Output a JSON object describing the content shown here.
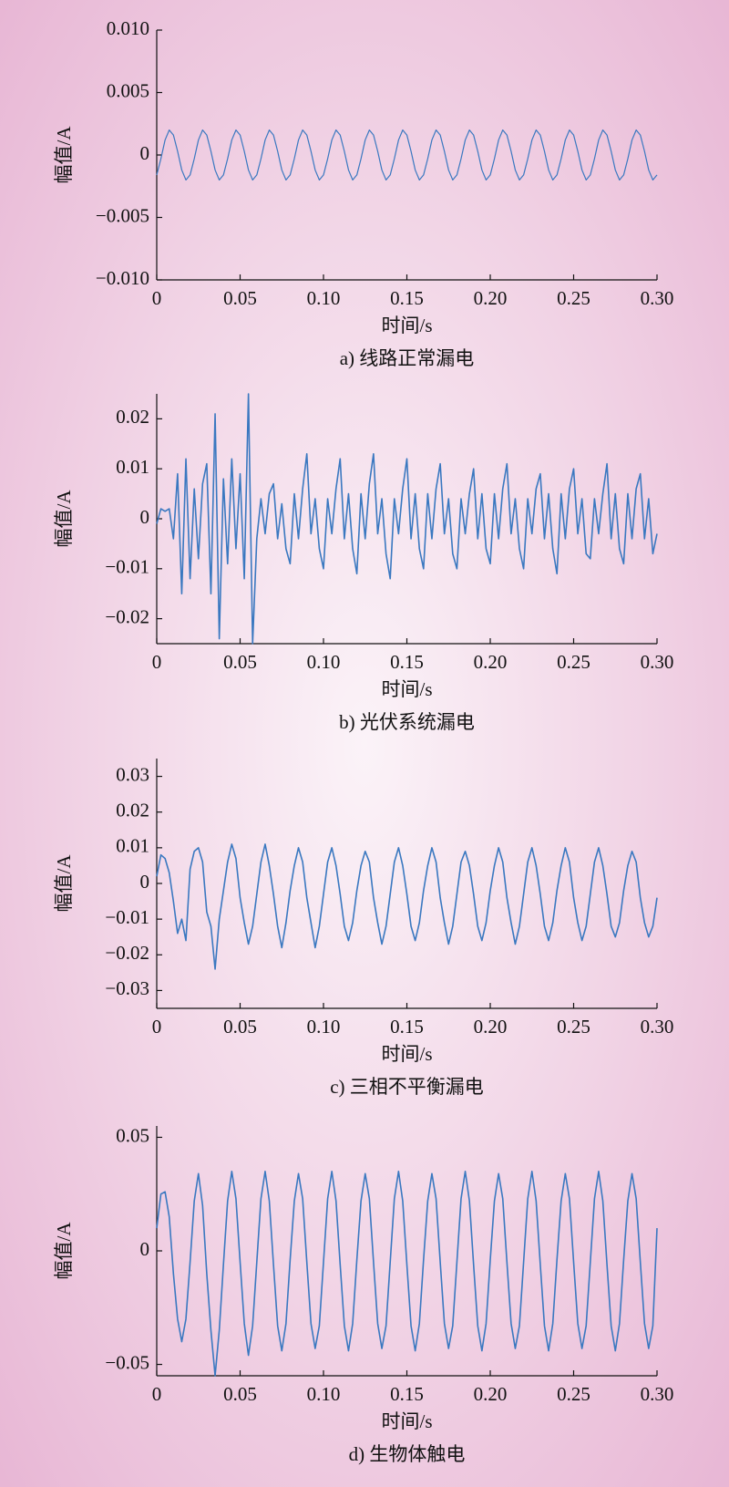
{
  "chart_data": [
    {
      "type": "line",
      "color": "#3a78c0",
      "ylabel": "幅值/A",
      "xlabel": "时间/s",
      "caption": "a) 线路正常漏电",
      "xlim": [
        0,
        0.3
      ],
      "xticks": [
        0,
        0.05,
        {
          "value": 0.1,
          "label": "0.10"
        },
        0.15,
        {
          "value": 0.2,
          "label": "0.20"
        },
        0.25,
        {
          "value": 0.3,
          "label": "0.30"
        }
      ],
      "ylim": [
        -0.01,
        0.01
      ],
      "yticks": [
        {
          "value": -0.01,
          "label": "−0.010"
        },
        {
          "value": -0.005,
          "label": "−0.005"
        },
        0,
        {
          "value": 0.005,
          "label": "0.005"
        },
        {
          "value": 0.01,
          "label": "0.010"
        }
      ],
      "x": [
        0,
        0.0025,
        0.005,
        0.0075,
        0.01,
        0.0125,
        0.015,
        0.0175,
        0.02,
        0.0225,
        0.025,
        0.0275,
        0.03,
        0.0325,
        0.035,
        0.0375,
        0.04,
        0.0425,
        0.045,
        0.0475,
        0.05,
        0.0525,
        0.055,
        0.0575,
        0.06,
        0.0625,
        0.065,
        0.0675,
        0.07,
        0.0725,
        0.075,
        0.0775,
        0.08,
        0.0825,
        0.085,
        0.0875,
        0.09,
        0.0925,
        0.095,
        0.0975,
        0.1,
        0.1025,
        0.105,
        0.1075,
        0.11,
        0.1125,
        0.115,
        0.1175,
        0.12,
        0.1225,
        0.125,
        0.1275,
        0.13,
        0.1325,
        0.135,
        0.1375,
        0.14,
        0.1425,
        0.145,
        0.1475,
        0.15,
        0.1525,
        0.155,
        0.1575,
        0.16,
        0.1625,
        0.165,
        0.1675,
        0.17,
        0.1725,
        0.175,
        0.1775,
        0.18,
        0.1825,
        0.185,
        0.1875,
        0.19,
        0.1925,
        0.195,
        0.1975,
        0.2,
        0.2025,
        0.205,
        0.2075,
        0.21,
        0.2125,
        0.215,
        0.2175,
        0.22,
        0.2225,
        0.225,
        0.2275,
        0.23,
        0.2325,
        0.235,
        0.2375,
        0.24,
        0.2425,
        0.245,
        0.2475,
        0.25,
        0.2525,
        0.255,
        0.2575,
        0.26,
        0.2625,
        0.265,
        0.2675,
        0.27,
        0.2725,
        0.275,
        0.2775,
        0.28,
        0.2825,
        0.285,
        0.2875,
        0.29,
        0.2925,
        0.295,
        0.2975,
        0.3
      ],
      "values": [
        -0.0016,
        -0.0003,
        0.0012,
        0.002,
        0.0016,
        0.0003,
        -0.0012,
        -0.002,
        -0.0016,
        -0.0003,
        0.0012,
        0.002,
        0.0016,
        0.0003,
        -0.0012,
        -0.002,
        -0.0016,
        -0.0003,
        0.0012,
        0.002,
        0.0016,
        0.0003,
        -0.0012,
        -0.002,
        -0.0016,
        -0.0003,
        0.0012,
        0.002,
        0.0016,
        0.0003,
        -0.0012,
        -0.002,
        -0.0016,
        -0.0003,
        0.0012,
        0.002,
        0.0016,
        0.0003,
        -0.0012,
        -0.002,
        -0.0016,
        -0.0003,
        0.0012,
        0.002,
        0.0016,
        0.0003,
        -0.0012,
        -0.002,
        -0.0016,
        -0.0003,
        0.0012,
        0.002,
        0.0016,
        0.0003,
        -0.0012,
        -0.002,
        -0.0016,
        -0.0003,
        0.0012,
        0.002,
        0.0016,
        0.0003,
        -0.0012,
        -0.002,
        -0.0016,
        -0.0003,
        0.0012,
        0.002,
        0.0016,
        0.0003,
        -0.0012,
        -0.002,
        -0.0016,
        -0.0003,
        0.0012,
        0.002,
        0.0016,
        0.0003,
        -0.0012,
        -0.002,
        -0.0016,
        -0.0003,
        0.0012,
        0.002,
        0.0016,
        0.0003,
        -0.0012,
        -0.002,
        -0.0016,
        -0.0003,
        0.0012,
        0.002,
        0.0016,
        0.0003,
        -0.0012,
        -0.002,
        -0.0016,
        -0.0003,
        0.0012,
        0.002,
        0.0016,
        0.0003,
        -0.0012,
        -0.002,
        -0.0016,
        -0.0003,
        0.0012,
        0.002,
        0.0016,
        0.0003,
        -0.0012,
        -0.002,
        -0.0016,
        -0.0003,
        0.0012,
        0.002,
        0.0016,
        0.0003,
        -0.0012,
        -0.002,
        -0.0016
      ]
    },
    {
      "type": "line",
      "color": "#3a78c0",
      "ylabel": "幅值/A",
      "xlabel": "时间/s",
      "caption": "b) 光伏系统漏电",
      "xlim": [
        0,
        0.3
      ],
      "xticks": [
        0,
        0.05,
        {
          "value": 0.1,
          "label": "0.10"
        },
        0.15,
        {
          "value": 0.2,
          "label": "0.20"
        },
        0.25,
        {
          "value": 0.3,
          "label": "0.30"
        }
      ],
      "ylim": [
        -0.025,
        0.025
      ],
      "yticks": [
        {
          "value": -0.02,
          "label": "−0.02"
        },
        {
          "value": -0.01,
          "label": "−0.01"
        },
        0,
        0.01,
        0.02
      ],
      "x": [
        0,
        0.0025,
        0.005,
        0.0075,
        0.01,
        0.0125,
        0.015,
        0.0175,
        0.02,
        0.0225,
        0.025,
        0.0275,
        0.03,
        0.0325,
        0.035,
        0.0375,
        0.04,
        0.0425,
        0.045,
        0.0475,
        0.05,
        0.0525,
        0.055,
        0.0575,
        0.06,
        0.0625,
        0.065,
        0.0675,
        0.07,
        0.0725,
        0.075,
        0.0775,
        0.08,
        0.0825,
        0.085,
        0.0875,
        0.09,
        0.0925,
        0.095,
        0.0975,
        0.1,
        0.1025,
        0.105,
        0.1075,
        0.11,
        0.1125,
        0.115,
        0.1175,
        0.12,
        0.1225,
        0.125,
        0.1275,
        0.13,
        0.1325,
        0.135,
        0.1375,
        0.14,
        0.1425,
        0.145,
        0.1475,
        0.15,
        0.1525,
        0.155,
        0.1575,
        0.16,
        0.1625,
        0.165,
        0.1675,
        0.17,
        0.1725,
        0.175,
        0.1775,
        0.18,
        0.1825,
        0.185,
        0.1875,
        0.19,
        0.1925,
        0.195,
        0.1975,
        0.2,
        0.2025,
        0.205,
        0.2075,
        0.21,
        0.2125,
        0.215,
        0.2175,
        0.22,
        0.2225,
        0.225,
        0.2275,
        0.23,
        0.2325,
        0.235,
        0.2375,
        0.24,
        0.2425,
        0.245,
        0.2475,
        0.25,
        0.2525,
        0.255,
        0.2575,
        0.26,
        0.2625,
        0.265,
        0.2675,
        0.27,
        0.2725,
        0.275,
        0.2775,
        0.28,
        0.2825,
        0.285,
        0.2875,
        0.29,
        0.2925,
        0.295,
        0.2975,
        0.3
      ],
      "values": [
        -0.001,
        0.002,
        0.0015,
        0.002,
        -0.004,
        0.009,
        -0.015,
        0.012,
        -0.012,
        0.006,
        -0.008,
        0.007,
        0.011,
        -0.015,
        0.021,
        -0.024,
        0.008,
        -0.009,
        0.012,
        -0.006,
        0.009,
        -0.012,
        0.025,
        -0.025,
        -0.004,
        0.004,
        -0.003,
        0.005,
        0.007,
        -0.004,
        0.003,
        -0.006,
        -0.009,
        0.005,
        -0.004,
        0.006,
        0.013,
        -0.003,
        0.004,
        -0.006,
        -0.01,
        0.004,
        -0.003,
        0.006,
        0.012,
        -0.004,
        0.005,
        -0.006,
        -0.011,
        0.005,
        -0.004,
        0.007,
        0.013,
        -0.003,
        0.004,
        -0.007,
        -0.012,
        0.004,
        -0.003,
        0.006,
        0.012,
        -0.004,
        0.005,
        -0.006,
        -0.01,
        0.005,
        -0.004,
        0.006,
        0.011,
        -0.003,
        0.004,
        -0.007,
        -0.01,
        0.004,
        -0.003,
        0.005,
        0.01,
        -0.004,
        0.005,
        -0.006,
        -0.009,
        0.005,
        -0.004,
        0.006,
        0.011,
        -0.003,
        0.004,
        -0.006,
        -0.01,
        0.004,
        -0.003,
        0.006,
        0.009,
        -0.004,
        0.005,
        -0.006,
        -0.011,
        0.005,
        -0.004,
        0.006,
        0.01,
        -0.003,
        0.004,
        -0.007,
        -0.008,
        0.004,
        -0.003,
        0.005,
        0.011,
        -0.004,
        0.005,
        -0.006,
        -0.009,
        0.005,
        -0.004,
        0.006,
        0.009,
        -0.004,
        0.004,
        -0.007,
        -0.003
      ]
    },
    {
      "type": "line",
      "color": "#3a78c0",
      "ylabel": "幅值/A",
      "xlabel": "时间/s",
      "caption": "c) 三相不平衡漏电",
      "xlim": [
        0,
        0.3
      ],
      "xticks": [
        0,
        0.05,
        {
          "value": 0.1,
          "label": "0.10"
        },
        0.15,
        {
          "value": 0.2,
          "label": "0.20"
        },
        0.25,
        {
          "value": 0.3,
          "label": "0.30"
        }
      ],
      "ylim": [
        -0.035,
        0.035
      ],
      "yticks": [
        {
          "value": -0.03,
          "label": "−0.03"
        },
        {
          "value": -0.02,
          "label": "−0.02"
        },
        {
          "value": -0.01,
          "label": "−0.01"
        },
        0,
        0.01,
        0.02,
        0.03
      ],
      "x": [
        0,
        0.0025,
        0.005,
        0.0075,
        0.01,
        0.0125,
        0.015,
        0.0175,
        0.02,
        0.0225,
        0.025,
        0.0275,
        0.03,
        0.0325,
        0.035,
        0.0375,
        0.04,
        0.0425,
        0.045,
        0.0475,
        0.05,
        0.0525,
        0.055,
        0.0575,
        0.06,
        0.0625,
        0.065,
        0.0675,
        0.07,
        0.0725,
        0.075,
        0.0775,
        0.08,
        0.0825,
        0.085,
        0.0875,
        0.09,
        0.0925,
        0.095,
        0.0975,
        0.1,
        0.1025,
        0.105,
        0.1075,
        0.11,
        0.1125,
        0.115,
        0.1175,
        0.12,
        0.1225,
        0.125,
        0.1275,
        0.13,
        0.1325,
        0.135,
        0.1375,
        0.14,
        0.1425,
        0.145,
        0.1475,
        0.15,
        0.1525,
        0.155,
        0.1575,
        0.16,
        0.1625,
        0.165,
        0.1675,
        0.17,
        0.1725,
        0.175,
        0.1775,
        0.18,
        0.1825,
        0.185,
        0.1875,
        0.19,
        0.1925,
        0.195,
        0.1975,
        0.2,
        0.2025,
        0.205,
        0.2075,
        0.21,
        0.2125,
        0.215,
        0.2175,
        0.22,
        0.2225,
        0.225,
        0.2275,
        0.23,
        0.2325,
        0.235,
        0.2375,
        0.24,
        0.2425,
        0.245,
        0.2475,
        0.25,
        0.2525,
        0.255,
        0.2575,
        0.26,
        0.2625,
        0.265,
        0.2675,
        0.27,
        0.2725,
        0.275,
        0.2775,
        0.28,
        0.2825,
        0.285,
        0.2875,
        0.29,
        0.2925,
        0.295,
        0.2975,
        0.3
      ],
      "values": [
        0.002,
        0.008,
        0.007,
        0.003,
        -0.005,
        -0.014,
        -0.01,
        -0.016,
        0.004,
        0.009,
        0.01,
        0.006,
        -0.008,
        -0.012,
        -0.024,
        -0.01,
        -0.002,
        0.006,
        0.011,
        0.007,
        -0.004,
        -0.011,
        -0.017,
        -0.012,
        -0.003,
        0.006,
        0.011,
        0.005,
        -0.003,
        -0.012,
        -0.018,
        -0.011,
        -0.002,
        0.005,
        0.01,
        0.006,
        -0.004,
        -0.011,
        -0.018,
        -0.012,
        -0.003,
        0.006,
        0.01,
        0.005,
        -0.003,
        -0.012,
        -0.016,
        -0.011,
        -0.002,
        0.005,
        0.009,
        0.006,
        -0.004,
        -0.011,
        -0.017,
        -0.012,
        -0.003,
        0.006,
        0.01,
        0.005,
        -0.003,
        -0.012,
        -0.016,
        -0.011,
        -0.002,
        0.005,
        0.01,
        0.006,
        -0.004,
        -0.011,
        -0.017,
        -0.012,
        -0.003,
        0.006,
        0.009,
        0.005,
        -0.003,
        -0.012,
        -0.016,
        -0.011,
        -0.002,
        0.005,
        0.01,
        0.006,
        -0.004,
        -0.011,
        -0.017,
        -0.012,
        -0.003,
        0.006,
        0.01,
        0.005,
        -0.003,
        -0.012,
        -0.016,
        -0.011,
        -0.002,
        0.005,
        0.01,
        0.006,
        -0.004,
        -0.011,
        -0.016,
        -0.012,
        -0.003,
        0.006,
        0.01,
        0.005,
        -0.003,
        -0.012,
        -0.015,
        -0.011,
        -0.002,
        0.005,
        0.009,
        0.006,
        -0.004,
        -0.011,
        -0.015,
        -0.012,
        -0.004
      ]
    },
    {
      "type": "line",
      "color": "#3a78c0",
      "ylabel": "幅值/A",
      "xlabel": "时间/s",
      "caption": "d) 生物体触电",
      "xlim": [
        0,
        0.3
      ],
      "xticks": [
        0,
        0.05,
        {
          "value": 0.1,
          "label": "0.10"
        },
        0.15,
        {
          "value": 0.2,
          "label": "0.20"
        },
        0.25,
        {
          "value": 0.3,
          "label": "0.30"
        }
      ],
      "ylim": [
        -0.055,
        0.055
      ],
      "yticks": [
        {
          "value": -0.05,
          "label": "−0.05"
        },
        0,
        0.05
      ],
      "x": [
        0,
        0.0025,
        0.005,
        0.0075,
        0.01,
        0.0125,
        0.015,
        0.0175,
        0.02,
        0.0225,
        0.025,
        0.0275,
        0.03,
        0.0325,
        0.035,
        0.0375,
        0.04,
        0.0425,
        0.045,
        0.0475,
        0.05,
        0.0525,
        0.055,
        0.0575,
        0.06,
        0.0625,
        0.065,
        0.0675,
        0.07,
        0.0725,
        0.075,
        0.0775,
        0.08,
        0.0825,
        0.085,
        0.0875,
        0.09,
        0.0925,
        0.095,
        0.0975,
        0.1,
        0.1025,
        0.105,
        0.1075,
        0.11,
        0.1125,
        0.115,
        0.1175,
        0.12,
        0.1225,
        0.125,
        0.1275,
        0.13,
        0.1325,
        0.135,
        0.1375,
        0.14,
        0.1425,
        0.145,
        0.1475,
        0.15,
        0.1525,
        0.155,
        0.1575,
        0.16,
        0.1625,
        0.165,
        0.1675,
        0.17,
        0.1725,
        0.175,
        0.1775,
        0.18,
        0.1825,
        0.185,
        0.1875,
        0.19,
        0.1925,
        0.195,
        0.1975,
        0.2,
        0.2025,
        0.205,
        0.2075,
        0.21,
        0.2125,
        0.215,
        0.2175,
        0.22,
        0.2225,
        0.225,
        0.2275,
        0.23,
        0.2325,
        0.235,
        0.2375,
        0.24,
        0.2425,
        0.245,
        0.2475,
        0.25,
        0.2525,
        0.255,
        0.2575,
        0.26,
        0.2625,
        0.265,
        0.2675,
        0.27,
        0.2725,
        0.275,
        0.2775,
        0.28,
        0.2825,
        0.285,
        0.2875,
        0.29,
        0.2925,
        0.295,
        0.2975,
        0.3
      ],
      "values": [
        0.01,
        0.025,
        0.026,
        0.015,
        -0.01,
        -0.03,
        -0.04,
        -0.03,
        -0.005,
        0.022,
        0.034,
        0.02,
        -0.01,
        -0.035,
        -0.055,
        -0.035,
        -0.006,
        0.022,
        0.035,
        0.023,
        -0.005,
        -0.032,
        -0.046,
        -0.033,
        -0.005,
        0.023,
        0.035,
        0.022,
        -0.006,
        -0.033,
        -0.044,
        -0.032,
        -0.004,
        0.022,
        0.034,
        0.023,
        -0.005,
        -0.032,
        -0.043,
        -0.033,
        -0.005,
        0.023,
        0.035,
        0.022,
        -0.006,
        -0.033,
        -0.044,
        -0.032,
        -0.004,
        0.022,
        0.034,
        0.023,
        -0.005,
        -0.032,
        -0.043,
        -0.033,
        -0.005,
        0.023,
        0.035,
        0.022,
        -0.006,
        -0.033,
        -0.044,
        -0.032,
        -0.004,
        0.022,
        0.034,
        0.023,
        -0.005,
        -0.032,
        -0.043,
        -0.033,
        -0.005,
        0.023,
        0.035,
        0.022,
        -0.006,
        -0.033,
        -0.044,
        -0.032,
        -0.004,
        0.022,
        0.034,
        0.023,
        -0.005,
        -0.032,
        -0.043,
        -0.033,
        -0.005,
        0.023,
        0.035,
        0.022,
        -0.006,
        -0.033,
        -0.044,
        -0.032,
        -0.004,
        0.022,
        0.034,
        0.023,
        -0.005,
        -0.032,
        -0.043,
        -0.033,
        -0.005,
        0.023,
        0.035,
        0.022,
        -0.006,
        -0.033,
        -0.044,
        -0.032,
        -0.004,
        0.022,
        0.034,
        0.023,
        -0.005,
        -0.032,
        -0.043,
        -0.033,
        0.01
      ]
    }
  ]
}
